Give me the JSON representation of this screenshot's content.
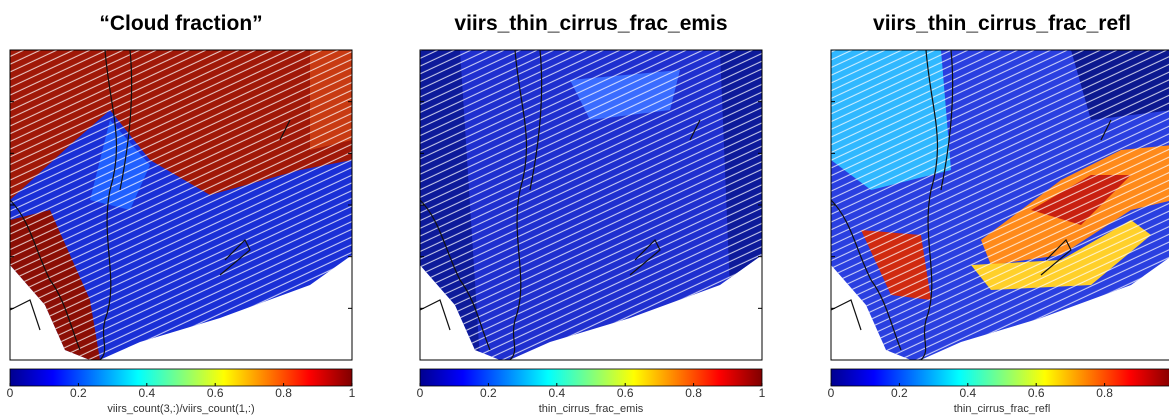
{
  "panels": [
    {
      "title": "“Cloud fraction”",
      "colorbar": {
        "clim": [
          0,
          1
        ],
        "ticks": [
          0,
          0.2,
          0.4,
          0.6,
          0.8,
          1
        ],
        "label": "viirs_count(3,:)/viirs_count(1,:)"
      }
    },
    {
      "title": "viirs_thin_cirrus_frac_emis",
      "colorbar": {
        "clim": [
          0,
          1
        ],
        "ticks": [
          0,
          0.2,
          0.4,
          0.6,
          0.8,
          1
        ],
        "label": "thin_cirrus_frac_emis"
      }
    },
    {
      "title": "viirs_thin_cirrus_frac_refl",
      "colorbar": {
        "clim": [
          0,
          1
        ],
        "ticks": [
          0,
          0.2,
          0.4,
          0.6,
          0.8
        ],
        "label": "thin_cirrus_frac_refl"
      }
    }
  ]
}
